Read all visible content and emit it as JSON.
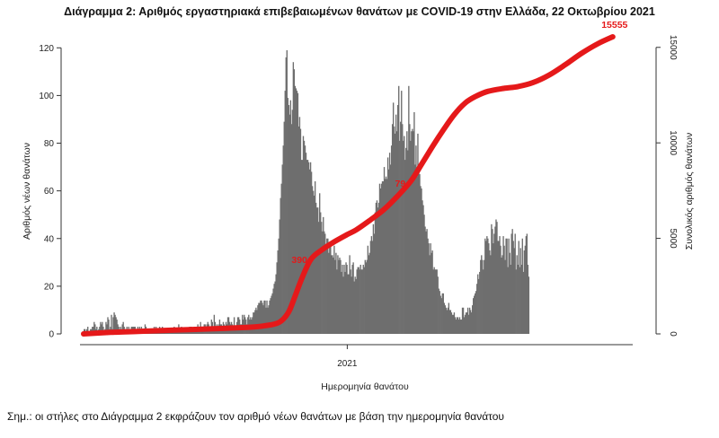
{
  "chart_data": {
    "type": "bar",
    "title": "Διάγραμμα 2: Αριθμός εργαστηριακά επιβεβαιωμένων θανάτων με COVID-19 στην Ελλάδα, 22 Οκτωβρίου 2021",
    "xlabel": "Ημερομηνία θανάτου",
    "ylabel_left": "Αριθμός νέων θανάτων",
    "ylabel_right": "Συνολικός αριθμός θανάτων",
    "x_tick_labels": [
      "2021"
    ],
    "y_left_ticks": [
      0,
      20,
      40,
      60,
      80,
      100,
      120
    ],
    "y_right_ticks": [
      0,
      5000,
      10000,
      15000
    ],
    "y_left_lim": [
      0,
      125
    ],
    "y_right_lim": [
      0,
      15600
    ],
    "x_range_days": [
      0,
      600
    ],
    "x_tick_day": 290,
    "bars_series": {
      "name": "Αριθμός νέων θανάτων",
      "color": "#6e6e6e",
      "day_start": 0,
      "values": [
        2,
        2,
        1,
        2,
        3,
        1,
        1,
        2,
        2,
        3,
        3,
        5,
        4,
        2,
        3,
        1,
        2,
        3,
        5,
        4,
        5,
        3,
        1,
        2,
        5,
        4,
        7,
        6,
        2,
        3,
        8,
        2,
        7,
        9,
        8,
        7,
        6,
        4,
        3,
        2,
        3,
        2,
        4,
        5,
        3,
        2,
        2,
        3,
        1,
        3,
        2,
        1,
        3,
        3,
        3,
        3,
        3,
        2,
        2,
        3,
        2,
        3,
        2,
        3,
        2,
        1,
        2,
        4,
        3,
        1,
        2,
        1,
        2,
        2,
        2,
        2,
        1,
        3,
        2,
        3,
        2,
        2,
        1,
        3,
        2,
        2,
        3,
        2,
        1,
        2,
        2,
        1,
        2,
        2,
        1,
        2,
        2,
        1,
        2,
        3,
        2,
        2,
        2,
        2,
        4,
        2,
        2,
        3,
        2,
        2,
        2,
        1,
        2,
        2,
        2,
        2,
        3,
        3,
        3,
        2,
        2,
        3,
        3,
        3,
        2,
        4,
        3,
        2,
        5,
        3,
        3,
        2,
        4,
        4,
        3,
        4,
        5,
        4,
        3,
        3,
        6,
        5,
        3,
        8,
        5,
        3,
        4,
        3,
        4,
        6,
        4,
        4,
        3,
        5,
        4,
        3,
        5,
        4,
        7,
        7,
        5,
        4,
        5,
        4,
        3,
        7,
        3,
        3,
        5,
        7,
        7,
        6,
        4,
        4,
        8,
        6,
        8,
        7,
        6,
        4,
        7,
        8,
        6,
        7,
        6,
        7,
        9,
        9,
        10,
        11,
        10,
        12,
        13,
        13,
        14,
        14,
        13,
        12,
        14,
        14,
        11,
        14,
        11,
        12,
        14,
        15,
        16,
        17,
        19,
        21,
        22,
        25,
        30,
        35,
        40,
        48,
        57,
        63,
        71,
        79,
        89,
        102,
        116,
        119,
        99,
        96,
        92,
        98,
        88,
        94,
        114,
        111,
        104,
        103,
        102,
        101,
        87,
        91,
        86,
        73,
        73,
        83,
        81,
        79,
        76,
        73,
        73,
        72,
        69,
        72,
        68,
        62,
        60,
        58,
        64,
        55,
        53,
        53,
        47,
        59,
        51,
        47,
        43,
        49,
        43,
        42,
        36,
        40,
        40,
        34,
        38,
        38,
        33,
        33,
        32,
        37,
        31,
        34,
        27,
        33,
        31,
        32,
        31,
        26,
        29,
        24,
        29,
        26,
        30,
        29,
        25,
        25,
        33,
        27,
        24,
        29,
        30,
        22,
        24,
        23,
        27,
        28,
        28,
        27,
        29,
        27,
        27,
        29,
        28,
        31,
        30,
        31,
        37,
        33,
        34,
        39,
        41,
        39,
        46,
        42,
        51,
        55,
        56,
        53,
        55,
        63,
        61,
        63,
        64,
        64,
        70,
        65,
        66,
        65,
        74,
        69,
        76,
        71,
        79,
        88,
        97,
        87,
        84,
        92,
        85,
        96,
        104,
        81,
        89,
        102,
        88,
        81,
        83,
        73,
        78,
        85,
        77,
        104,
        88,
        81,
        85,
        86,
        85,
        93,
        71,
        79,
        66,
        84,
        70,
        67,
        62,
        61,
        56,
        54,
        50,
        45,
        43,
        44,
        40,
        38,
        33,
        38,
        34,
        35,
        27,
        28,
        27,
        27,
        27,
        24,
        19,
        18,
        16,
        15,
        17,
        17,
        13,
        12,
        11,
        10,
        11,
        13,
        10,
        10,
        9,
        8,
        8,
        9,
        7,
        6,
        7,
        7,
        6,
        7,
        6,
        6,
        11,
        11,
        7,
        8,
        9,
        9,
        11,
        8,
        11,
        10,
        9,
        12,
        15,
        16,
        17,
        18,
        21,
        25,
        23,
        26,
        31,
        33,
        31,
        27,
        31,
        40,
        39,
        41,
        40,
        38,
        35,
        33,
        46,
        44,
        38,
        42,
        45,
        48,
        47,
        39,
        39,
        41,
        37,
        32,
        33,
        41,
        37,
        31,
        40,
        40,
        28,
        40,
        34,
        29,
        42,
        44,
        39,
        36,
        42,
        27,
        33,
        29,
        39,
        28,
        36,
        29,
        40,
        26,
        35,
        37,
        41,
        42,
        29,
        24
      ]
    },
    "line_series": {
      "name": "Συνολικός αριθμός θανάτων",
      "color": "#e5191a",
      "points": [
        [
          0,
          0
        ],
        [
          30,
          80
        ],
        [
          60,
          130
        ],
        [
          100,
          200
        ],
        [
          140,
          265
        ],
        [
          180,
          340
        ],
        [
          200,
          430
        ],
        [
          215,
          600
        ],
        [
          225,
          1100
        ],
        [
          232,
          1900
        ],
        [
          240,
          2900
        ],
        [
          250,
          3900
        ],
        [
          262,
          4400
        ],
        [
          275,
          4800
        ],
        [
          290,
          5200
        ],
        [
          300,
          5450
        ],
        [
          315,
          5950
        ],
        [
          330,
          6500
        ],
        [
          345,
          7200
        ],
        [
          360,
          8000
        ],
        [
          372,
          8900
        ],
        [
          385,
          9900
        ],
        [
          396,
          10700
        ],
        [
          408,
          11500
        ],
        [
          420,
          12100
        ],
        [
          432,
          12450
        ],
        [
          445,
          12700
        ],
        [
          462,
          12850
        ],
        [
          478,
          12950
        ],
        [
          494,
          13150
        ],
        [
          512,
          13550
        ],
        [
          530,
          14100
        ],
        [
          548,
          14700
        ],
        [
          566,
          15200
        ],
        [
          582,
          15555
        ]
      ]
    },
    "annotations": [
      {
        "label": "390",
        "day": 250
      },
      {
        "label": "79",
        "day": 358
      },
      {
        "label": "15555",
        "day": 582
      }
    ]
  },
  "note": "Σημ.: οι στήλες στο Διάγραμμα 2 εκφράζουν τον αριθμό νέων θανάτων με βάση την ημερομηνία θανάτου"
}
